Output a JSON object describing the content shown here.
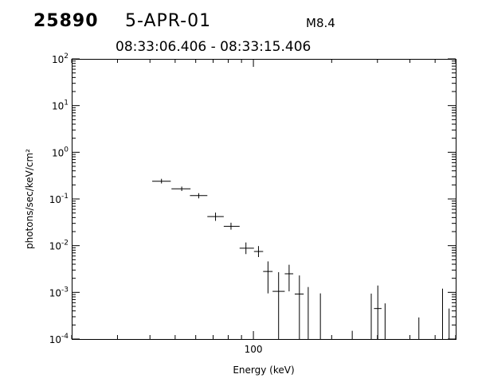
{
  "header": {
    "event_id": "25890",
    "date": "5-APR-01",
    "flare_class": "M8.4",
    "time_range": "08:33:06.406 - 08:33:15.406"
  },
  "chart_data": {
    "type": "scatter",
    "title": "",
    "xlabel": "Energy (keV)",
    "ylabel": "photons/sec/keV/cm²",
    "x_scale": "log",
    "y_scale": "log",
    "xlim": [
      20,
      600
    ],
    "ylim": [
      0.0001,
      100
    ],
    "x_tick_labels": [
      {
        "value": 100,
        "label": "100"
      }
    ],
    "y_tick_labels": [
      {
        "value": 0.0001,
        "base": "10",
        "exp": "-4"
      },
      {
        "value": 0.001,
        "base": "10",
        "exp": "-3"
      },
      {
        "value": 0.01,
        "base": "10",
        "exp": "-2"
      },
      {
        "value": 0.1,
        "base": "10",
        "exp": "-1"
      },
      {
        "value": 1,
        "base": "10",
        "exp": "0"
      },
      {
        "value": 10,
        "base": "10",
        "exp": "1"
      },
      {
        "value": 100,
        "base": "10",
        "exp": "2"
      }
    ],
    "grid": false,
    "series": [
      {
        "points": [
          {
            "x": 44.3,
            "xlo": 40.8,
            "xhi": 48.1,
            "y": 0.24,
            "ylo": 0.215,
            "yhi": 0.27
          },
          {
            "x": 53.0,
            "xlo": 48.4,
            "xhi": 57.3,
            "y": 0.165,
            "ylo": 0.148,
            "yhi": 0.184
          },
          {
            "x": 61.6,
            "xlo": 57.0,
            "xhi": 66.5,
            "y": 0.118,
            "ylo": 0.103,
            "yhi": 0.133
          },
          {
            "x": 71.5,
            "xlo": 66.5,
            "xhi": 76.9,
            "y": 0.042,
            "ylo": 0.034,
            "yhi": 0.051
          },
          {
            "x": 82.0,
            "xlo": 76.9,
            "xhi": 88.5,
            "y": 0.026,
            "ylo": 0.022,
            "yhi": 0.031
          },
          {
            "x": 93.6,
            "xlo": 88.5,
            "xhi": 100.5,
            "y": 0.0088,
            "ylo": 0.0066,
            "yhi": 0.0117
          },
          {
            "x": 104.6,
            "xlo": 100.5,
            "xhi": 109.0,
            "y": 0.0075,
            "ylo": 0.0057,
            "yhi": 0.0098
          },
          {
            "x": 113.8,
            "xlo": 109.0,
            "xhi": 118.5,
            "y": 0.0028,
            "ylo": 0.00095,
            "yhi": 0.0046
          },
          {
            "x": 125.0,
            "xlo": 118.5,
            "xhi": 132.0,
            "y": 0.00105,
            "ylo": 0.0001,
            "yhi": 0.0027
          },
          {
            "x": 137.2,
            "xlo": 132.0,
            "xhi": 142.3,
            "y": 0.0025,
            "ylo": 0.00105,
            "yhi": 0.0039
          },
          {
            "x": 150.3,
            "xlo": 144.2,
            "xhi": 156.1,
            "y": 0.00092,
            "ylo": 0.0001,
            "yhi": 0.0023
          },
          {
            "x": 162.5,
            "y": null,
            "ylo": 0.0001,
            "yhi": 0.0013
          },
          {
            "x": 181.0,
            "y": null,
            "ylo": 0.0001,
            "yhi": 0.00095
          },
          {
            "x": 240.0,
            "y": null,
            "ylo": 0.0001,
            "yhi": 0.00015
          },
          {
            "x": 284.0,
            "y": null,
            "ylo": 0.0001,
            "yhi": 0.00094
          },
          {
            "x": 301.0,
            "xlo": 291.0,
            "xhi": 311.0,
            "y": 0.00045,
            "ylo": 0.0001,
            "yhi": 0.0014
          },
          {
            "x": 321.0,
            "y": null,
            "ylo": 0.0001,
            "yhi": 0.00058
          },
          {
            "x": 433.0,
            "y": null,
            "ylo": 0.0001,
            "yhi": 0.00029
          },
          {
            "x": 534.0,
            "y": null,
            "ylo": 0.0001,
            "yhi": 0.0012
          },
          {
            "x": 566.0,
            "y": null,
            "ylo": 0.0001,
            "yhi": 0.00045
          }
        ]
      }
    ]
  }
}
